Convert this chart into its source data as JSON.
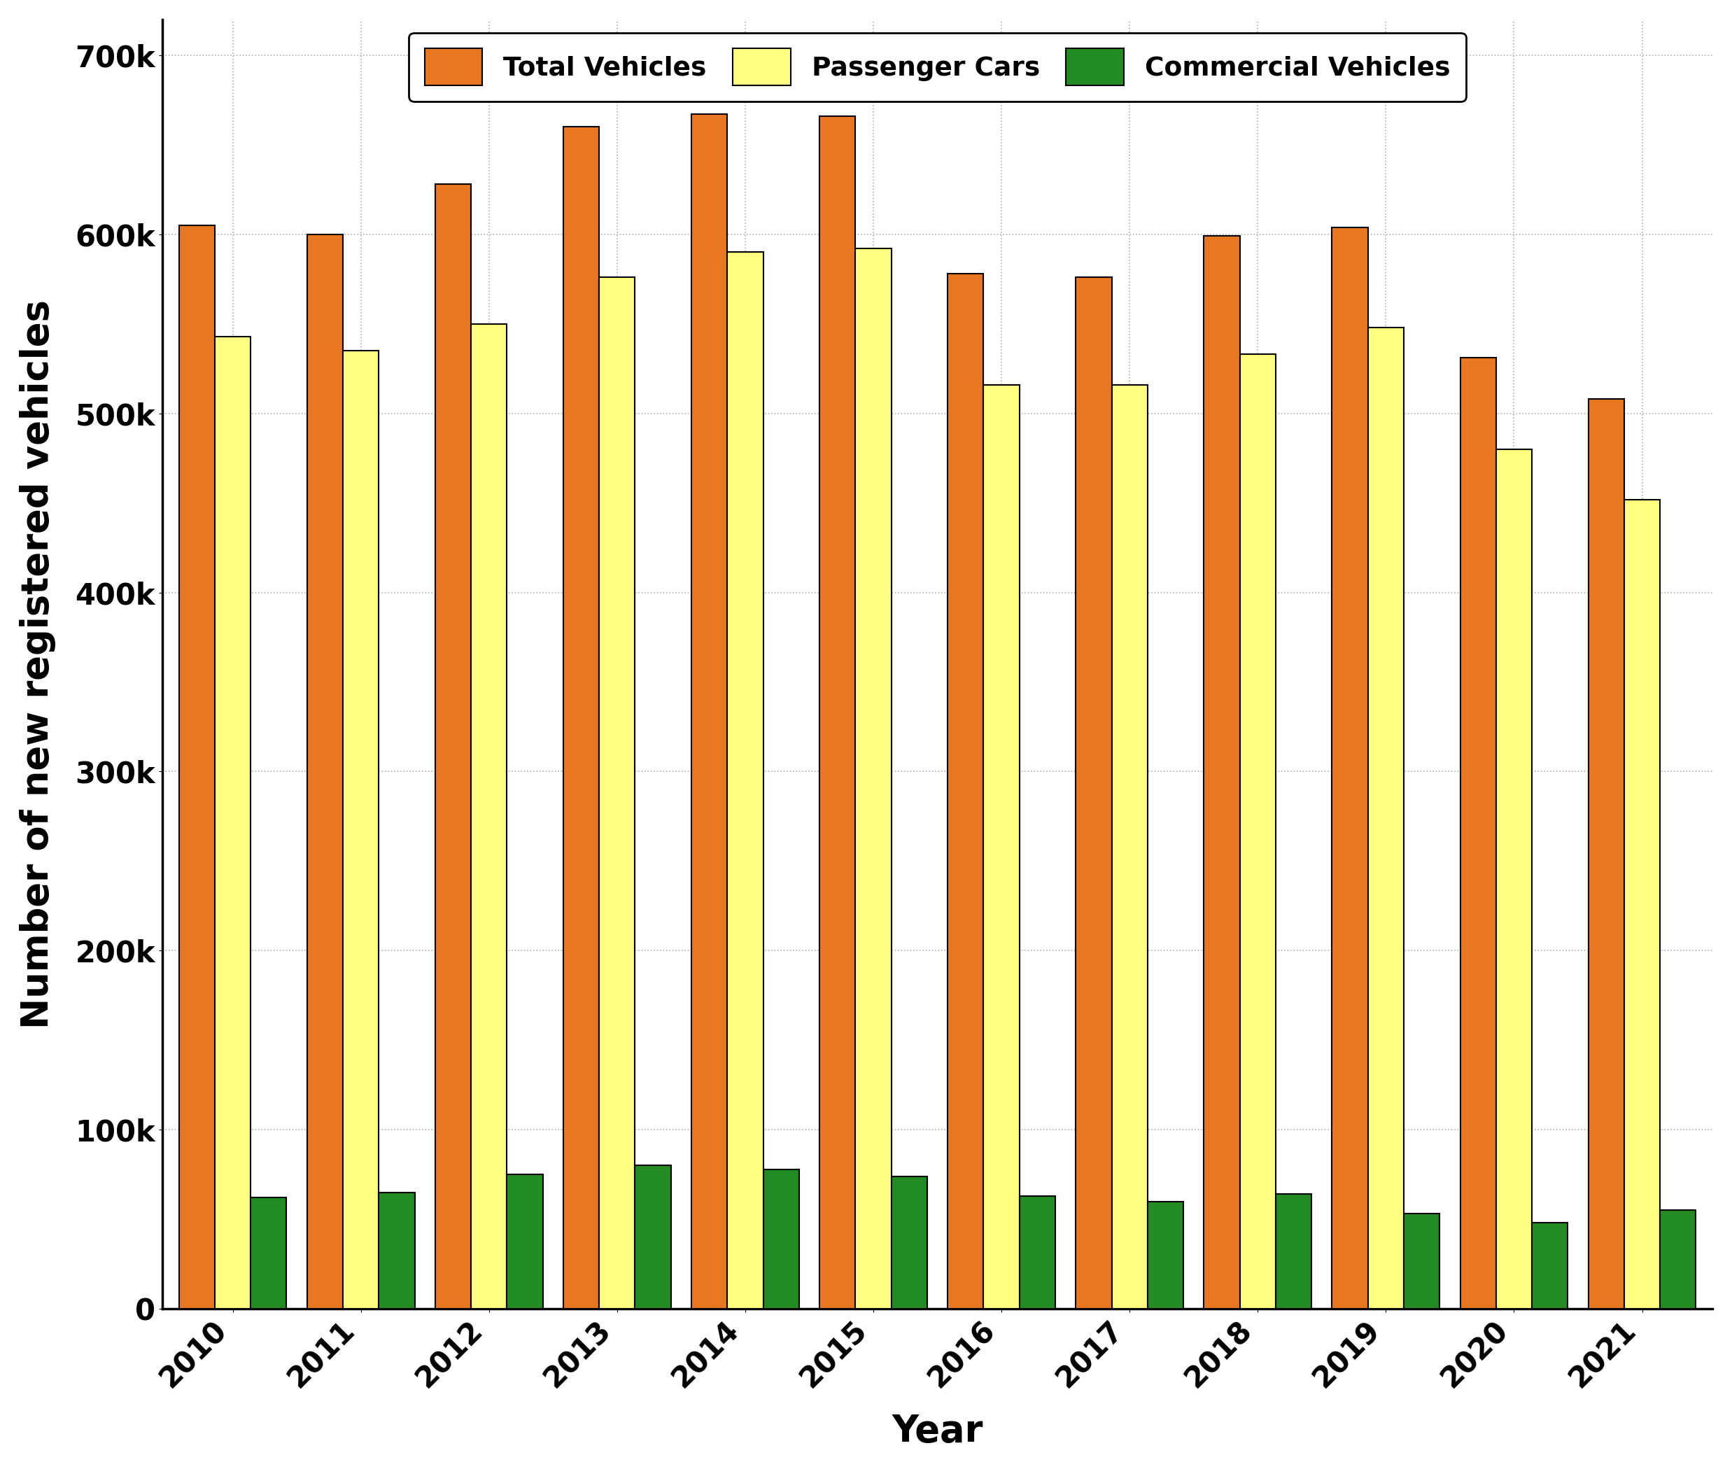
{
  "years": [
    2010,
    2011,
    2012,
    2013,
    2014,
    2015,
    2016,
    2017,
    2018,
    2019,
    2020,
    2021
  ],
  "total_vehicles": [
    605000,
    600000,
    628000,
    660000,
    667000,
    666000,
    578000,
    576000,
    599000,
    604000,
    531000,
    508000
  ],
  "passenger_cars": [
    543000,
    535000,
    550000,
    576000,
    590000,
    592000,
    516000,
    516000,
    533000,
    548000,
    480000,
    452000
  ],
  "commercial_vehicles": [
    62000,
    65000,
    75000,
    80000,
    78000,
    74000,
    63000,
    60000,
    64000,
    53000,
    48000,
    55000
  ],
  "bar_colors": {
    "total": "#E87722",
    "passenger": "#FFFF80",
    "commercial": "#228B22"
  },
  "bar_edge_color": "#000000",
  "bar_width": 0.28,
  "ylabel": "Number of new registered vehicles",
  "xlabel": "Year",
  "ylim": [
    0,
    720000
  ],
  "yticks": [
    0,
    100000,
    200000,
    300000,
    400000,
    500000,
    600000,
    700000
  ],
  "legend_labels": [
    "Total Vehicles",
    "Passenger Cars",
    "Commercial Vehicles"
  ],
  "axis_label_fontsize": 38,
  "tick_fontsize": 30,
  "legend_fontsize": 27,
  "background_color": "#ffffff",
  "grid_color": "#b0b0b0",
  "bar_edge_width": 1.5,
  "spine_linewidth": 2.5
}
